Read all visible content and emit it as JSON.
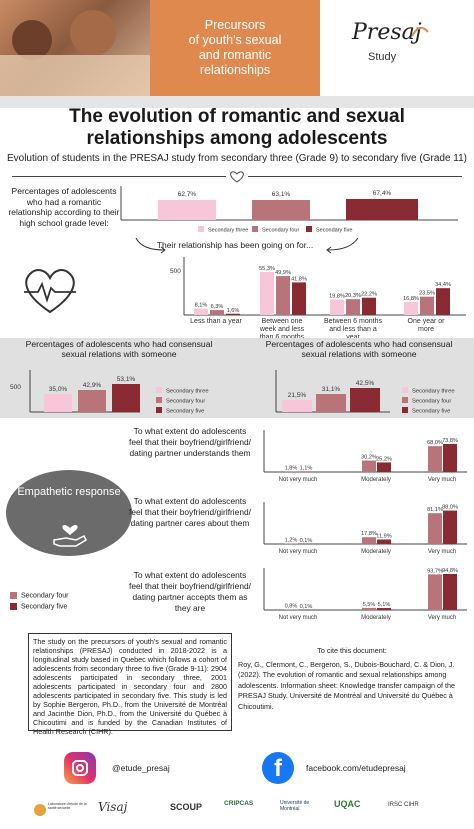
{
  "header": {
    "banner_line1": "Precursors",
    "banner_line2": "of youth's sexual",
    "banner_line3": "and romantic",
    "banner_line4": "relationships",
    "logo_name": "Presaj",
    "logo_sub": "Study"
  },
  "title_line1": "The evolution of romantic and sexual",
  "title_line2": "relationships among adolescents",
  "subtitle": "Evolution of students in the PRESAJ study from secondary three (Grade 9) to secondary five (Grade 11)",
  "colors": {
    "sec3": "#f7c6d9",
    "sec4": "#b87478",
    "sec5": "#8a2a32",
    "accent": "#e0894f"
  },
  "legend": {
    "sec3": "Secondary three",
    "sec4": "Secondary four",
    "sec5": "Secondary five"
  },
  "charts": {
    "romantic": {
      "question": "Percentages of adolescents who had a romantic relationship according to their high school grade level:",
      "labels": [
        "62,7%",
        "63,1%",
        "67,4%"
      ],
      "values": [
        62.7,
        63.1,
        67.4
      ]
    },
    "duration": {
      "title": "Their relationship has been going on for...",
      "y_tick": "500",
      "categories": [
        "Less than a year",
        "Between one week and less than 6 months",
        "Between 6 months and less than a year",
        "One year or more"
      ],
      "sec3_labels": [
        "8,1%",
        "55,3%",
        "19,8%",
        "16,8%"
      ],
      "sec4_labels": [
        "6,3%",
        "49,9%",
        "20,3%",
        "23,5%"
      ],
      "sec5_labels": [
        "1,6%",
        "41,8%",
        "22,2%",
        "34,4%"
      ],
      "sec3": [
        8.1,
        55.3,
        19.8,
        16.8
      ],
      "sec4": [
        6.3,
        49.9,
        20.3,
        23.5
      ],
      "sec5": [
        1.6,
        41.8,
        22.2,
        34.4
      ]
    },
    "consensual_left": {
      "title": "Percentages of adolescents who had consensual sexual relations with someone",
      "y_tick": "500",
      "labels": [
        "35,0%",
        "42,9%",
        "53,1%"
      ],
      "values": [
        35.0,
        42.9,
        53.1
      ]
    },
    "consensual_right": {
      "title": "Percentages of adolescents who had consensual sexual relations with someone",
      "labels": [
        "21,5%",
        "31,1%",
        "42,5%"
      ],
      "values": [
        21.5,
        31.1,
        42.5
      ]
    },
    "empathy_title": "Empathetic response",
    "q1": {
      "question": "To what extent do adolescents feel that their boyfriend/girlfriend/ dating partner understands them",
      "cats": [
        "Not very much",
        "Moderately",
        "Very much"
      ],
      "sec4_labels": [
        "1,8%",
        "30,2%",
        "68,0%"
      ],
      "sec5_labels": [
        "1,1%",
        "25,2%",
        "73,8%"
      ],
      "sec4": [
        1.8,
        30.2,
        68.0
      ],
      "sec5": [
        1.1,
        25.2,
        73.8
      ]
    },
    "q2": {
      "question": "To what extent do adolescents feel that their boyfriend/girlfriend/ dating partner cares about them",
      "cats": [
        "Not very much",
        "Moderately",
        "Very much"
      ],
      "sec4_labels": [
        "1,2%",
        "17,8%",
        "81,1%"
      ],
      "sec5_labels": [
        "0,1%",
        "11,9%",
        "88,0%"
      ],
      "sec4": [
        1.2,
        17.8,
        81.1
      ],
      "sec5": [
        0.1,
        11.9,
        88.0
      ]
    },
    "q3": {
      "question": "To what extent do adolescents feel that their boyfriend/girlfriend/ dating partner accepts them as they are",
      "cats": [
        "Not very much",
        "Moderately",
        "Very much"
      ],
      "sec4_labels": [
        "0,8%",
        "5,5%",
        "93,7%"
      ],
      "sec5_labels": [
        "0,1%",
        "5,1%",
        "94,8%"
      ],
      "sec4": [
        0.8,
        5.5,
        93.7
      ],
      "sec5": [
        0.1,
        5.1,
        94.8
      ]
    }
  },
  "study_text": "The study on the precursors of youth's sexual and romantic relationships (PRESAJ) conducted in 2018-2022 is a longitudinal study based in Quebec which follows a cohort of adolescents from secondary three to five (Grade 9-11): 2904 adolescents participated in secondary three, 2001 adolescents participated in secondary four and 2800 adolescents participated in secondary five. This study is led by Sophie Bergeron, Ph.D., from the Université de Montréal and Jacinthe Dion, Ph.D., from the Université du Québec à Chicoutimi and is funded by the Canadian Institutes of Health Research (CIHR).",
  "cite_title": "To cite this document:",
  "cite_text": "Roy, G., Clermont, C., Bergeron, S., Dubois-Bouchard, C. & Dion, J. (2022). The evolution of romantic and sexual relationships among adolescents. Information sheet: Knowledge transfer campaign of the PRESAJ Study. Université de Montréal and Université du Québec à Chicoutimi.",
  "instagram": "@etude_presaj",
  "facebook": "facebook.com/etudepresaj",
  "partners": [
    "Laboratoire d'étude de la santé sexuelle",
    "Visaj",
    "SCOUP",
    "CRIPCAS",
    "Université de Montréal",
    "UQAC",
    "IRSC CIHR"
  ]
}
